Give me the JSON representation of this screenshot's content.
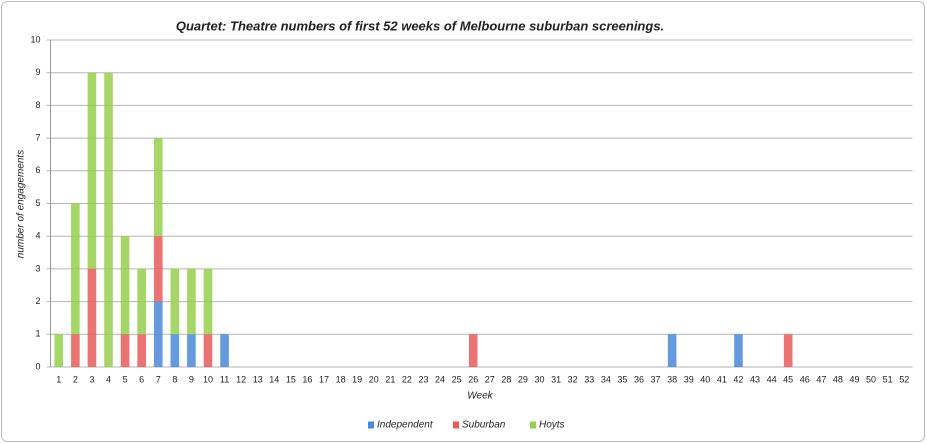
{
  "chart_data": {
    "type": "stacked-bar",
    "title": "Quartet: Theatre numbers of first 52 weeks of Melbourne suburban screenings.",
    "x_label": "Week",
    "y_label": "number of engagements",
    "categories": [
      "1",
      "2",
      "3",
      "4",
      "5",
      "6",
      "7",
      "8",
      "9",
      "10",
      "11",
      "12",
      "13",
      "14",
      "15",
      "16",
      "17",
      "18",
      "19",
      "20",
      "21",
      "22",
      "23",
      "24",
      "25",
      "26",
      "27",
      "28",
      "29",
      "30",
      "31",
      "32",
      "33",
      "34",
      "35",
      "36",
      "37",
      "38",
      "39",
      "40",
      "41",
      "42",
      "43",
      "44",
      "45",
      "46",
      "47",
      "48",
      "49",
      "50",
      "51",
      "52"
    ],
    "series": [
      {
        "name": "Independent",
        "color": "#4a8ad8",
        "values": [
          0,
          0,
          0,
          0,
          0,
          0,
          2,
          1,
          1,
          0,
          1,
          0,
          0,
          0,
          0,
          0,
          0,
          0,
          0,
          0,
          0,
          0,
          0,
          0,
          0,
          0,
          0,
          0,
          0,
          0,
          0,
          0,
          0,
          0,
          0,
          0,
          0,
          1,
          0,
          0,
          0,
          1,
          0,
          0,
          0,
          0,
          0,
          0,
          0,
          0,
          0,
          0
        ]
      },
      {
        "name": "Suburban",
        "color": "#e85a5a",
        "values": [
          0,
          1,
          3,
          0,
          1,
          1,
          2,
          0,
          0,
          1,
          0,
          0,
          0,
          0,
          0,
          0,
          0,
          0,
          0,
          0,
          0,
          0,
          0,
          0,
          0,
          1,
          0,
          0,
          0,
          0,
          0,
          0,
          0,
          0,
          0,
          0,
          0,
          0,
          0,
          0,
          0,
          0,
          0,
          0,
          1,
          0,
          0,
          0,
          0,
          0,
          0,
          0
        ]
      },
      {
        "name": "Hoyts",
        "color": "#96cf4e",
        "values": [
          1,
          4,
          6,
          9,
          3,
          2,
          3,
          2,
          2,
          2,
          0,
          0,
          0,
          0,
          0,
          0,
          0,
          0,
          0,
          0,
          0,
          0,
          0,
          0,
          0,
          0,
          0,
          0,
          0,
          0,
          0,
          0,
          0,
          0,
          0,
          0,
          0,
          0,
          0,
          0,
          0,
          0,
          0,
          0,
          0,
          0,
          0,
          0,
          0,
          0,
          0,
          0
        ]
      }
    ],
    "ylim": [
      0,
      10
    ],
    "yticks": [
      0,
      1,
      2,
      3,
      4,
      5,
      6,
      7,
      8,
      9,
      10
    ],
    "grid": true,
    "legend": "bottom"
  }
}
